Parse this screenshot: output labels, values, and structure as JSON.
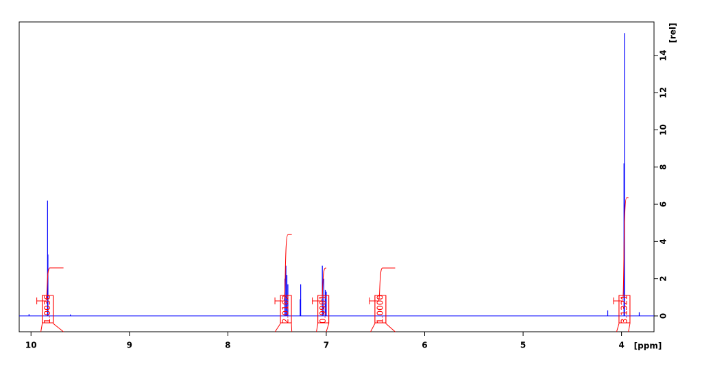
{
  "chart_data": {
    "type": "spectrum",
    "x_label": "[ppm]",
    "y_label": "[rel]",
    "xlim": [
      10.12,
      3.67
    ],
    "xticks": [
      10,
      9,
      8,
      7,
      6,
      5,
      4
    ],
    "ylim": [
      -0.85,
      15.8
    ],
    "yticks": [
      0,
      2,
      4,
      6,
      8,
      10,
      12,
      14
    ],
    "color": "#0000ff",
    "peaks": {
      "x": [
        10.02,
        9.832,
        9.828,
        9.6,
        7.42,
        7.41,
        7.4,
        7.39,
        7.265,
        7.26,
        7.04,
        7.025,
        7.01,
        7.0,
        4.14,
        3.975,
        3.97,
        3.82
      ],
      "values": [
        0.1,
        6.2,
        3.3,
        0.08,
        2.0,
        2.7,
        2.2,
        1.7,
        0.9,
        1.7,
        2.7,
        2.0,
        1.4,
        1.3,
        0.3,
        8.2,
        15.2,
        0.2
      ]
    },
    "integrals": {
      "color": "#ff0000",
      "start": [
        9.9,
        7.52,
        7.1,
        6.55,
        4.05
      ],
      "end": [
        9.67,
        7.35,
        7.0,
        6.3,
        3.93
      ],
      "center": [
        9.83,
        7.41,
        7.03,
        6.45,
        3.97
      ],
      "values": [
        1.0036,
        2.0162,
        0.9981,
        1.0,
        3.1321
      ],
      "value_labels": [
        "1.0036",
        "2.0162",
        "0.9981",
        "1.0000",
        "3.1321"
      ]
    }
  }
}
